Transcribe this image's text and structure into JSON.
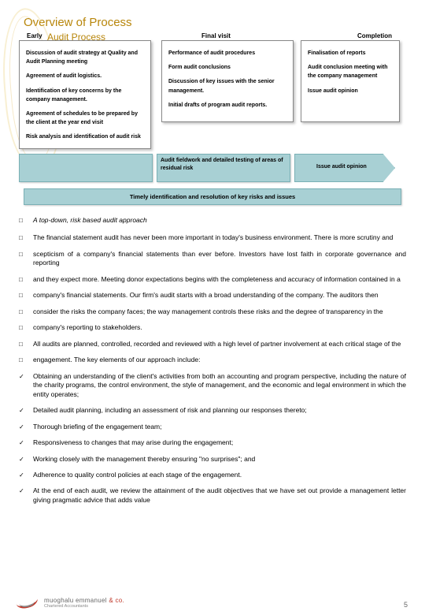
{
  "title": "Overview of Process",
  "subtitle": "Audit Process",
  "columns": {
    "early": "Early",
    "final": "Final visit",
    "completion": "Completion"
  },
  "boxes": {
    "early": [
      "Discussion of audit strategy at Quality and Audit Planning meeting",
      "Agreement of audit logistics.",
      "Identification of key concerns by the company management.",
      "Agreement of schedules to be prepared by the client at the year end visit",
      "Risk analysis and identification of audit risk"
    ],
    "final": [
      "Performance of audit procedures",
      "Form audit conclusions",
      "Discussion of key issues with the senior management.",
      "Initial drafts of program audit reports."
    ],
    "completion": [
      "Finalisation of reports",
      "Audit conclusion meeting with the company management",
      "Issue audit opinion"
    ]
  },
  "arrow": {
    "seg1": " ",
    "seg2": "Audit fieldwork and detailed testing of areas of residual risk",
    "seg3": "Issue audit opinion"
  },
  "timely": "Timely identification and resolution of key risks and issues",
  "bullets": [
    {
      "m": "□",
      "t": "A top-down, risk based audit approach",
      "i": true
    },
    {
      "m": "□",
      "t": "The financial statement audit has never been more important in today's business environment. There is more scrutiny and"
    },
    {
      "m": "□",
      "t": "scepticism of a company's financial statements than ever before. Investors have lost faith in corporate governance and reporting"
    },
    {
      "m": "□",
      "t": "and they expect more. Meeting donor expectations begins with the completeness and accuracy of information contained in a"
    },
    {
      "m": "□",
      "t": "company's financial statements. Our firm's audit starts with a broad understanding of the company. The auditors then"
    },
    {
      "m": "□",
      "t": "consider the risks the company faces; the way management controls these risks and the degree of transparency in the"
    },
    {
      "m": "□",
      "t": "company's reporting to stakeholders."
    },
    {
      "m": "□",
      "t": "All audits are planned, controlled, recorded and reviewed with a high level of partner involvement at each critical stage of the"
    },
    {
      "m": "□",
      "t": "engagement. The key elements of our approach include:"
    },
    {
      "m": "✓",
      "t": "Obtaining an understanding of the client's activities from both an accounting and program perspective, including the nature of the charity programs, the control environment, the style of management, and the economic and legal environment in which the entity operates;"
    },
    {
      "m": "✓",
      "t": "Detailed audit planning, including an assessment of risk and planning our responses thereto;"
    },
    {
      "m": "✓",
      "t": "Thorough briefing of the engagement team;"
    },
    {
      "m": "✓",
      "t": "Responsiveness to changes that may arise during the engagement;"
    },
    {
      "m": "✓",
      "t": "Working closely with the management thereby ensuring \"no surprises\"; and"
    },
    {
      "m": "✓",
      "t": "Adherence to quality control policies at each stage of the engagement."
    },
    {
      "m": "✓",
      "t": "At the end of each audit, we review the attainment of the audit objectives that we have set out provide a management letter giving pragmatic advice that adds value"
    }
  ],
  "footer": {
    "name1": "muoghalu emmanuel",
    "name2": "& co.",
    "sub": "Chartered Accountants"
  },
  "pagenum": "5"
}
